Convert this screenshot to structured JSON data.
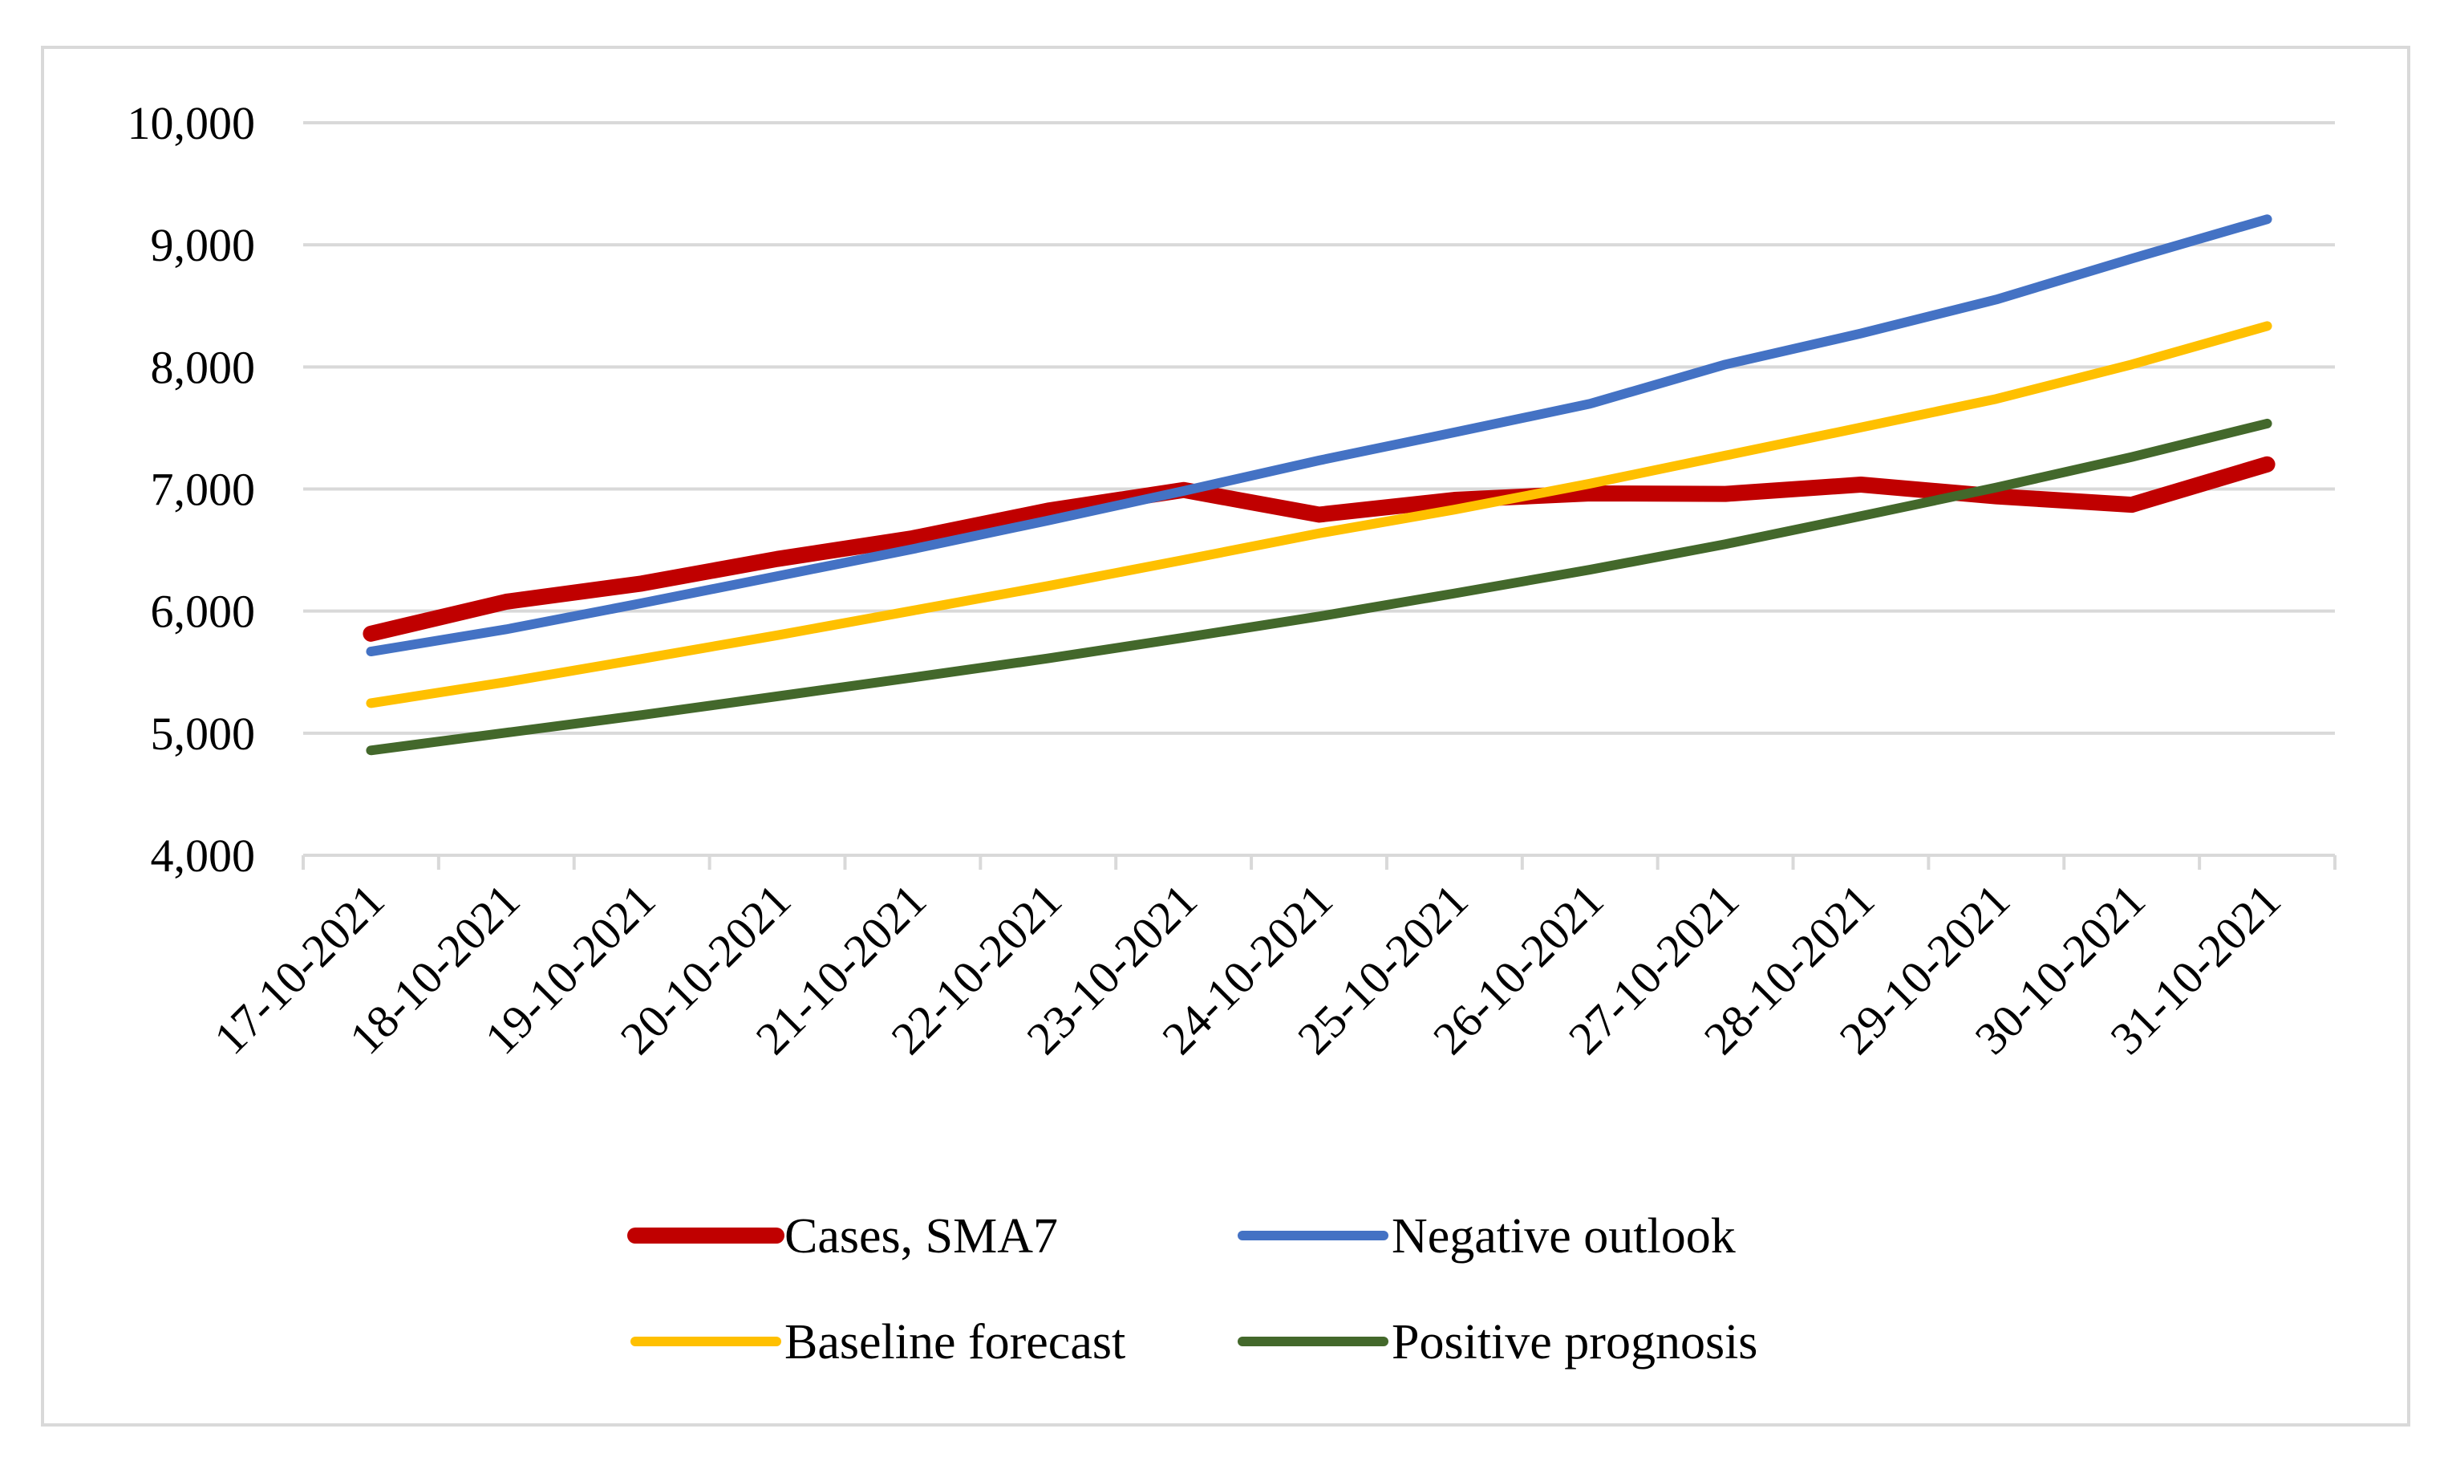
{
  "chart_data": {
    "type": "line",
    "title": "",
    "xlabel": "",
    "ylabel": "",
    "ylim": [
      4000,
      10000
    ],
    "yticks": [
      4000,
      5000,
      6000,
      7000,
      8000,
      9000,
      10000
    ],
    "ytick_labels": [
      "4,000",
      "5,000",
      "6,000",
      "7,000",
      "8,000",
      "9,000",
      "10,000"
    ],
    "grid": true,
    "legend_position": "bottom",
    "categories": [
      "17-10-2021",
      "18-10-2021",
      "19-10-2021",
      "20-10-2021",
      "21-10-2021",
      "22-10-2021",
      "23-10-2021",
      "24-10-2021",
      "25-10-2021",
      "26-10-2021",
      "27-10-2021",
      "28-10-2021",
      "29-10-2021",
      "30-10-2021",
      "31-10-2021"
    ],
    "series": [
      {
        "name": "Cases, SMA7",
        "color": "#C00000",
        "values": [
          5815,
          6077,
          6226,
          6427,
          6597,
          6823,
          6992,
          6790,
          6911,
          6964,
          6960,
          7036,
          6940,
          6871,
          7202
        ]
      },
      {
        "name": "Negative outlook",
        "color": "#4472C4",
        "values": [
          5669,
          5851,
          6065,
          6286,
          6508,
          6742,
          6984,
          7234,
          7464,
          7698,
          8020,
          8274,
          8552,
          8887,
          9210
        ]
      },
      {
        "name": "Baseline forecast",
        "color": "#FFC000",
        "values": [
          5246,
          5419,
          5609,
          5802,
          6004,
          6206,
          6419,
          6637,
          6831,
          7044,
          7274,
          7504,
          7738,
          8020,
          8335
        ]
      },
      {
        "name": "Positive prognosis",
        "color": "#43682B",
        "values": [
          4859,
          5004,
          5149,
          5302,
          5456,
          5613,
          5782,
          5956,
          6145,
          6339,
          6548,
          6778,
          7012,
          7262,
          7536
        ]
      }
    ]
  }
}
